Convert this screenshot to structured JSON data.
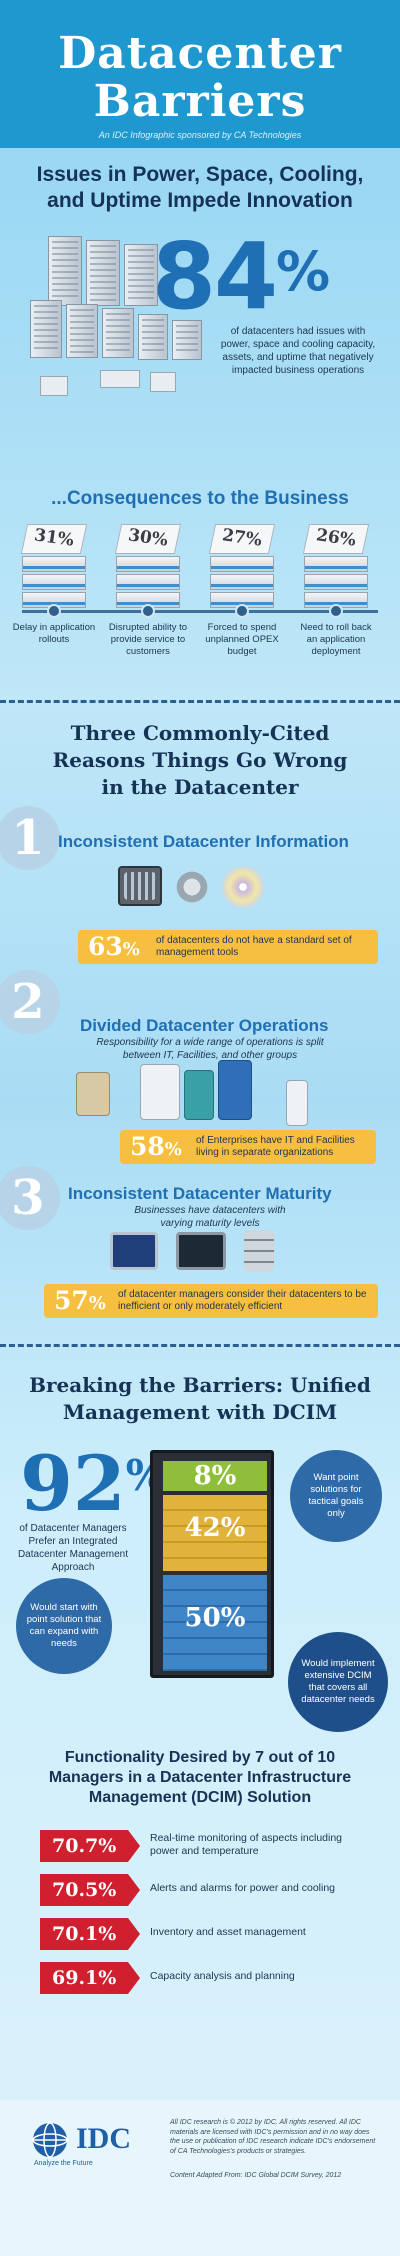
{
  "header": {
    "title_line1": "Datacenter",
    "title_line2": "Barriers",
    "sponsor": "An IDC Infographic sponsored by CA Technologies"
  },
  "issues": {
    "title_line1": "Issues in Power, Space, Cooling,",
    "title_line2": "and Uptime Impede Innovation",
    "stat": "84",
    "stat_unit": "%",
    "description": "of datacenters had issues with power, space and cooling capacity, assets, and uptime that negatively impacted business operations"
  },
  "consequences": {
    "title": "...Consequences to the Business",
    "items": [
      {
        "pct": "31%",
        "label": "Delay in application rollouts"
      },
      {
        "pct": "30%",
        "label": "Disrupted ability to provide service to customers"
      },
      {
        "pct": "27%",
        "label": "Forced to spend unplanned OPEX budget"
      },
      {
        "pct": "26%",
        "label": "Need to roll back an application deployment"
      }
    ]
  },
  "reasons": {
    "title_line1": "Three Commonly-Cited",
    "title_line2": "Reasons Things Go Wrong",
    "title_line3": "in the Datacenter",
    "items": [
      {
        "number": "1",
        "heading": "Inconsistent Datacenter Information",
        "subtitle": "",
        "stat": "63",
        "unit": "%",
        "stat_text": "of datacenters do not have a standard set of management tools"
      },
      {
        "number": "2",
        "heading": "Divided Datacenter Operations",
        "subtitle": "Responsibility for a wide range of operations is split between IT, Facilities, and other groups",
        "stat": "58",
        "unit": "%",
        "stat_text": "of Enterprises have IT and Facilities living in separate organizations"
      },
      {
        "number": "3",
        "heading": "Inconsistent Datacenter Maturity",
        "subtitle": "Businesses have datacenters with varying maturity levels",
        "stat": "57",
        "unit": "%",
        "stat_text": "of datacenter managers consider their datacenters to be inefficient or only moderately efficient"
      }
    ]
  },
  "breaking": {
    "title_line1": "Breaking the Barriers: Unified",
    "title_line2": "Management with DCIM",
    "stat": "92",
    "stat_unit": "%",
    "description": "of Datacenter Managers Prefer an Integrated Datacenter Management Approach",
    "segments": [
      {
        "pct": "8%",
        "bubble": "Want point solutions for tactical goals only",
        "color": "#8fbf3a"
      },
      {
        "pct": "42%",
        "bubble": "Would start with point solution that can expand with needs",
        "color": "#e0b43a"
      },
      {
        "pct": "50%",
        "bubble": "Would implement extensive DCIM that covers all datacenter needs",
        "color": "#3f86c8"
      }
    ]
  },
  "functionality": {
    "title_line1": "Functionality Desired by 7 out of 10",
    "title_line2": "Managers in a Datacenter Infrastructure",
    "title_line3": "Management (DCIM) Solution",
    "items": [
      {
        "pct": "70.7%",
        "label": "Real-time monitoring of aspects including power and temperature"
      },
      {
        "pct": "70.5%",
        "label": "Alerts and alarms for power and cooling"
      },
      {
        "pct": "70.1%",
        "label": "Inventory and asset management"
      },
      {
        "pct": "69.1%",
        "label": "Capacity analysis and planning"
      }
    ]
  },
  "footer": {
    "logo_text": "IDC",
    "tagline": "Analyze the Future",
    "legal": "All IDC research is © 2012 by IDC. All rights reserved. All IDC materials are licensed with IDC's permission and in no way does the use or publication of IDC research indicate IDC's endorsement of CA Technologies's products or strategies.",
    "source": "Content Adapted From: IDC Global DCIM Survey, 2012"
  }
}
